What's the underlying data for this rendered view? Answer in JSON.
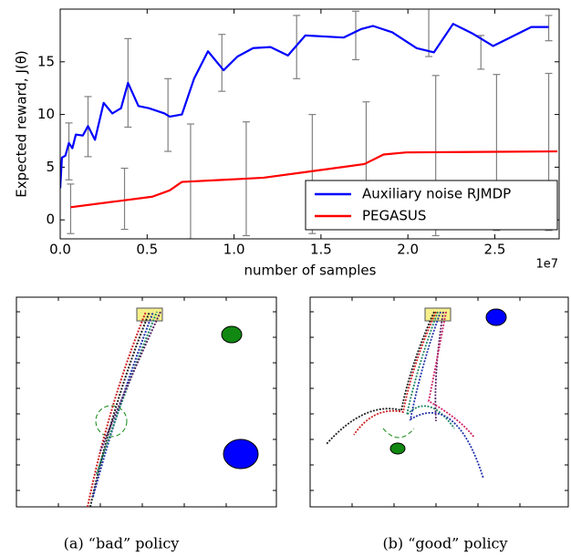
{
  "chart_data": {
    "type": "line",
    "y_label": "Expected reward, J(θ)",
    "x_label": "number of samples",
    "x_offset_label": "1e7",
    "xlim": [
      0,
      28700000
    ],
    "ylim": [
      -1.8,
      20
    ],
    "xticks": [
      {
        "value": 0,
        "label": "0.0"
      },
      {
        "value": 5000000,
        "label": "0.5"
      },
      {
        "value": 10000000,
        "label": "1.0"
      },
      {
        "value": 15000000,
        "label": "1.5"
      },
      {
        "value": 20000000,
        "label": "2.0"
      },
      {
        "value": 25000000,
        "label": "2.5"
      }
    ],
    "yticks": [
      0,
      5,
      10,
      15
    ],
    "legend": "lower right",
    "series": [
      {
        "name": "Auxiliary noise RJMDP",
        "color": "#0000ff",
        "x": [
          0,
          100000,
          300000,
          500000,
          700000,
          900000,
          1300000,
          1600000,
          2000000,
          2500000,
          3000000,
          3500000,
          3900000,
          4500000,
          5100000,
          6000000,
          6300000,
          7000000,
          7700000,
          8500000,
          9400000,
          10200000,
          11100000,
          12100000,
          13100000,
          14100000,
          16300000,
          17300000,
          18000000,
          19100000,
          20500000,
          21500000,
          22600000,
          23700000,
          24900000,
          27100000,
          28100000
        ],
        "values": [
          3,
          5.9,
          6.1,
          7.3,
          6.8,
          8.1,
          8.0,
          8.9,
          7.6,
          11.1,
          10.1,
          10.6,
          13,
          10.8,
          10.6,
          10.1,
          9.8,
          10,
          13.4,
          16,
          14.2,
          15.5,
          16.3,
          16.4,
          15.6,
          17.5,
          17.3,
          18.1,
          18.4,
          17.8,
          16.3,
          15.9,
          18.6,
          17.7,
          16.5,
          18.3,
          18.3
        ],
        "error_bars": {
          "color": "#808080",
          "x": [
            500000,
            1600000,
            3900000,
            6200000,
            9300000,
            13600000,
            17000000,
            21200000,
            24200000,
            28100000
          ],
          "values": [
            6.5,
            8.85,
            13,
            9.95,
            14.9,
            16.4,
            17.5,
            17.8,
            15.9,
            18.2
          ],
          "errors": [
            2.7,
            2.85,
            4.2,
            3.45,
            2.7,
            3,
            2.3,
            2.3,
            1.6,
            1.2
          ]
        }
      },
      {
        "name": "PEGASUS",
        "color": "#ff0000",
        "x": [
          600000,
          5300000,
          5800000,
          6300000,
          7000000,
          9400000,
          11700000,
          14400000,
          17500000,
          18600000,
          19900000,
          28600000
        ],
        "values": [
          1.2,
          2.2,
          2.5,
          2.8,
          3.6,
          3.8,
          4.0,
          4.6,
          5.3,
          6.2,
          6.4,
          6.5
        ],
        "error_bars": {
          "color": "#808080",
          "x": [
            600000,
            3700000,
            7500000,
            10700000,
            14500000,
            17600000,
            21600000,
            25100000,
            28100000
          ],
          "values": [
            1.05,
            2,
            3.65,
            3.9,
            4.35,
            5.35,
            6.1,
            6.4,
            6.45
          ],
          "errors": [
            2.35,
            2.9,
            5.45,
            5.4,
            5.65,
            5.85,
            7.6,
            7.4,
            7.45
          ]
        }
      }
    ]
  },
  "panels": [
    {
      "caption": "(a) “bad” policy"
    },
    {
      "caption": "(b) “good” policy"
    }
  ]
}
